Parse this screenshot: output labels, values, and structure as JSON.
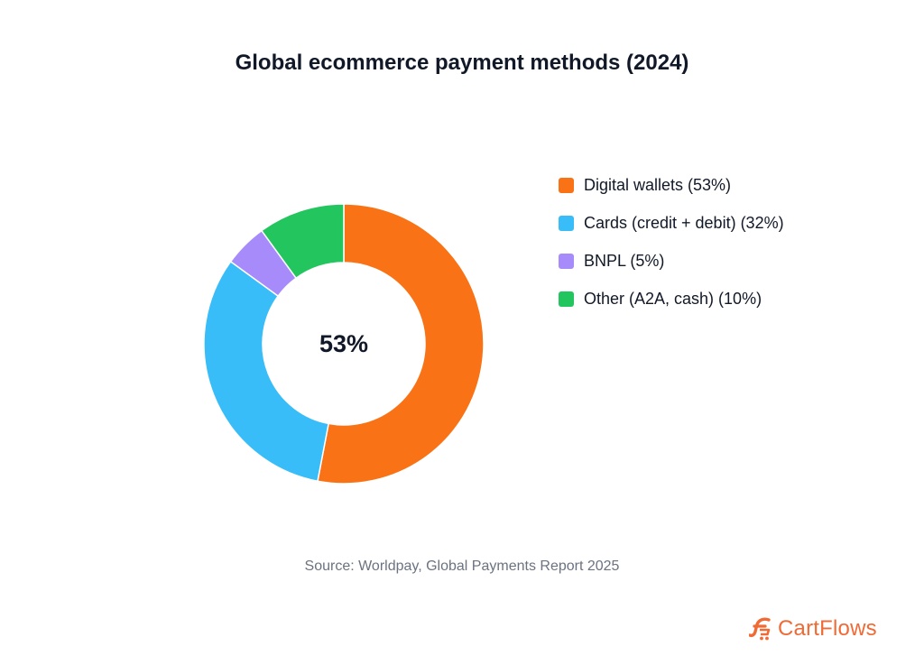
{
  "chart_data": {
    "type": "pie",
    "title": "Global ecommerce payment methods (2024)",
    "center_label": "53%",
    "categories": [
      "Digital wallets (53%)",
      "Cards (credit + debit) (32%)",
      "BNPL (5%)",
      "Other (A2A, cash) (10%)"
    ],
    "values": [
      53,
      32,
      5,
      10
    ],
    "colors": [
      "#f97316",
      "#38bdf8",
      "#a78bfa",
      "#22c55e"
    ],
    "legend_position": "right",
    "source": "Source: Worldpay, Global Payments Report 2025"
  },
  "brand": {
    "name": "CartFlows",
    "color": "#f06a35",
    "icon": "cartflows-logo-icon"
  }
}
